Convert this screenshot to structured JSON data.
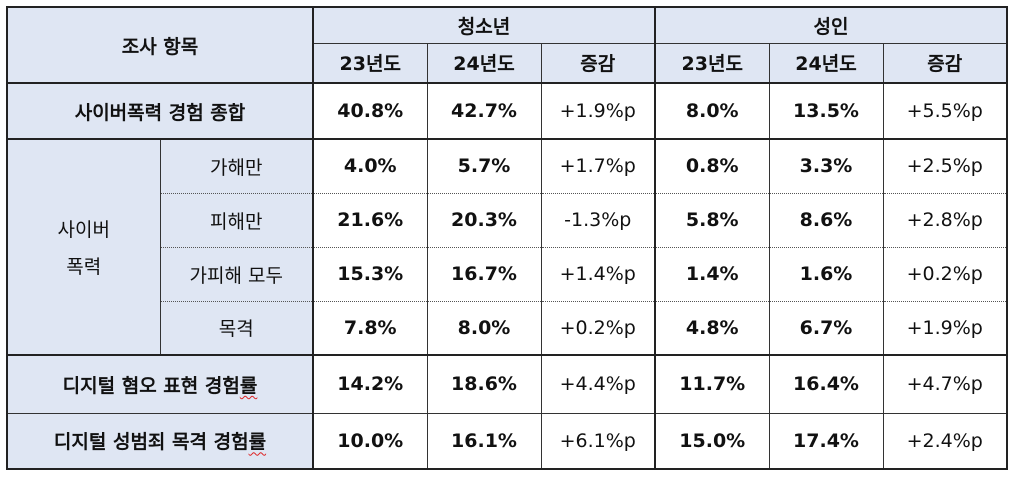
{
  "header": {
    "item_label": "조사 항목",
    "group_youth": "청소년",
    "group_adult": "성인",
    "year_23": "23년도",
    "year_24": "24년도",
    "change": "증감"
  },
  "rows": {
    "overall": {
      "label": "사이버폭력 경험 종합",
      "youth": [
        "40.8%",
        "42.7%",
        "+1.9%p"
      ],
      "adult": [
        "8.0%",
        "13.5%",
        "+5.5%p"
      ]
    },
    "cyber_group": {
      "label_line1": "사이버",
      "label_line2": "폭력",
      "items": [
        {
          "label": "가해만",
          "youth": [
            "4.0%",
            "5.7%",
            "+1.7%p"
          ],
          "adult": [
            "0.8%",
            "3.3%",
            "+2.5%p"
          ]
        },
        {
          "label": "피해만",
          "youth": [
            "21.6%",
            "20.3%",
            "-1.3%p"
          ],
          "adult": [
            "5.8%",
            "8.6%",
            "+2.8%p"
          ]
        },
        {
          "label": "가피해 모두",
          "youth": [
            "15.3%",
            "16.7%",
            "+1.4%p"
          ],
          "adult": [
            "1.4%",
            "1.6%",
            "+0.2%p"
          ]
        },
        {
          "label": "목격",
          "youth": [
            "7.8%",
            "8.0%",
            "+0.2%p"
          ],
          "adult": [
            "4.8%",
            "6.7%",
            "+1.9%p"
          ]
        }
      ]
    },
    "hate": {
      "label_prefix": "디지털 혐오 표현 경험",
      "label_spell": "률",
      "youth": [
        "14.2%",
        "18.6%",
        "+4.4%p"
      ],
      "adult": [
        "11.7%",
        "16.4%",
        "+4.7%p"
      ]
    },
    "sexcrime": {
      "label_prefix": "디지털 성범죄 목격 경험",
      "label_spell": "률",
      "youth": [
        "10.0%",
        "16.1%",
        "+6.1%p"
      ],
      "adult": [
        "15.0%",
        "17.4%",
        "+2.4%p"
      ]
    }
  }
}
